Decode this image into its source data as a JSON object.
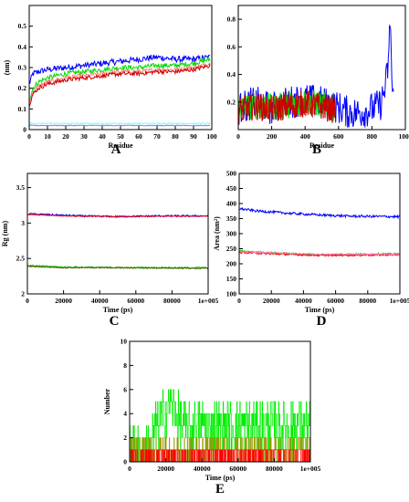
{
  "panels": {
    "A": {
      "letter": "A"
    },
    "B": {
      "letter": "B"
    },
    "C": {
      "letter": "C"
    },
    "D": {
      "letter": "D"
    },
    "E": {
      "letter": "E"
    }
  },
  "chart_data": [
    {
      "id": "A",
      "type": "line",
      "title": "",
      "xlabel": "Residue",
      "ylabel": "(nm)",
      "xlim": [
        0,
        100
      ],
      "ylim": [
        0,
        0.6
      ],
      "xticks": [
        0,
        10,
        20,
        30,
        40,
        50,
        60,
        70,
        80,
        90,
        100
      ],
      "yticks": [
        0,
        0.1,
        0.2,
        0.3,
        0.4,
        0.5
      ],
      "grid": false,
      "series": [
        {
          "color": "#0000ff",
          "x": [
            0,
            2,
            5,
            10,
            20,
            30,
            40,
            50,
            60,
            70,
            80,
            90,
            99
          ],
          "y": [
            0.22,
            0.27,
            0.28,
            0.29,
            0.3,
            0.31,
            0.32,
            0.33,
            0.34,
            0.35,
            0.34,
            0.34,
            0.35
          ],
          "noise": 0.015
        },
        {
          "color": "#00dd00",
          "x": [
            0,
            2,
            5,
            10,
            20,
            30,
            40,
            50,
            60,
            70,
            80,
            90,
            99
          ],
          "y": [
            0.14,
            0.2,
            0.23,
            0.25,
            0.27,
            0.28,
            0.29,
            0.3,
            0.3,
            0.31,
            0.31,
            0.32,
            0.34
          ],
          "noise": 0.012
        },
        {
          "color": "#ff8080",
          "x": [
            0,
            2,
            5,
            10,
            20,
            30,
            40,
            50,
            60,
            70,
            80,
            90,
            99
          ],
          "y": [
            0.13,
            0.18,
            0.21,
            0.23,
            0.25,
            0.26,
            0.27,
            0.28,
            0.28,
            0.29,
            0.29,
            0.3,
            0.32
          ],
          "noise": 0.01
        },
        {
          "color": "#cc0000",
          "x": [
            0,
            2,
            5,
            10,
            20,
            30,
            40,
            50,
            60,
            70,
            80,
            90,
            99
          ],
          "y": [
            0.12,
            0.17,
            0.2,
            0.22,
            0.24,
            0.25,
            0.26,
            0.27,
            0.27,
            0.28,
            0.28,
            0.29,
            0.31
          ],
          "noise": 0.01
        },
        {
          "color": "#80ffff",
          "x": [
            0,
            50,
            99
          ],
          "y": [
            0.03,
            0.03,
            0.03
          ],
          "noise": 0.003
        },
        {
          "color": "#8080ff",
          "x": [
            0,
            50,
            99
          ],
          "y": [
            0.02,
            0.02,
            0.02
          ],
          "noise": 0.002
        }
      ]
    },
    {
      "id": "B",
      "type": "line",
      "title": "",
      "xlabel": "Residue",
      "ylabel": "",
      "xlim": [
        0,
        1000
      ],
      "ylim": [
        0,
        0.9
      ],
      "xticks": [
        0,
        200,
        400,
        600,
        800,
        1000
      ],
      "yticks": [
        0.2,
        0.4,
        0.6,
        0.8
      ],
      "grid": false,
      "series": [
        {
          "color": "#0000ff",
          "x": [
            0,
            100,
            200,
            300,
            400,
            500,
            600,
            650,
            700,
            750,
            800,
            850,
            880,
            900,
            910,
            920,
            930
          ],
          "y": [
            0.15,
            0.2,
            0.15,
            0.2,
            0.22,
            0.2,
            0.16,
            0.13,
            0.12,
            0.13,
            0.15,
            0.18,
            0.3,
            0.5,
            0.85,
            0.3,
            0.2
          ],
          "noise": 0.12
        },
        {
          "color": "#00dd00",
          "x": [
            0,
            100,
            200,
            300,
            400,
            500,
            580
          ],
          "y": [
            0.15,
            0.18,
            0.16,
            0.18,
            0.2,
            0.18,
            0.15
          ],
          "noise": 0.1
        },
        {
          "color": "#cc0000",
          "x": [
            0,
            100,
            200,
            300,
            400,
            500,
            580
          ],
          "y": [
            0.14,
            0.17,
            0.15,
            0.17,
            0.19,
            0.17,
            0.14
          ],
          "noise": 0.1
        }
      ]
    },
    {
      "id": "C",
      "type": "line",
      "title": "",
      "xlabel": "Time (ps)",
      "ylabel": "Rg (nm)",
      "xlim": [
        0,
        100000
      ],
      "ylim": [
        2,
        3.7
      ],
      "xticks": [
        0,
        20000,
        40000,
        60000,
        80000,
        100000
      ],
      "xticklabels": [
        "0",
        "20000",
        "40000",
        "60000",
        "80000",
        "1e+005"
      ],
      "yticks": [
        2,
        2.5,
        3,
        3.5
      ],
      "grid": false,
      "series": [
        {
          "color": "#0000ff",
          "x": [
            0,
            10000,
            30000,
            50000,
            70000,
            90000,
            100000
          ],
          "y": [
            3.13,
            3.12,
            3.1,
            3.09,
            3.1,
            3.1,
            3.1
          ],
          "noise": 0.012
        },
        {
          "color": "#ff0000",
          "x": [
            0,
            20000,
            50000,
            100000
          ],
          "y": [
            3.12,
            3.1,
            3.09,
            3.1
          ],
          "noise": 0.006
        },
        {
          "color": "#00cc00",
          "x": [
            0,
            20000,
            50000,
            100000
          ],
          "y": [
            2.4,
            2.38,
            2.37,
            2.37
          ],
          "noise": 0.01
        },
        {
          "color": "#555500",
          "x": [
            0,
            20000,
            50000,
            100000
          ],
          "y": [
            2.39,
            2.37,
            2.37,
            2.36
          ],
          "noise": 0.008
        }
      ]
    },
    {
      "id": "D",
      "type": "line",
      "title": "",
      "xlabel": "Time (ps)",
      "ylabel": "Area (nm²)",
      "xlim": [
        0,
        100000
      ],
      "ylim": [
        100,
        500
      ],
      "xticks": [
        0,
        20000,
        40000,
        60000,
        80000,
        100000
      ],
      "xticklabels": [
        "0",
        "20000",
        "40000",
        "60000",
        "80000",
        "1e+005"
      ],
      "yticks": [
        100,
        150,
        200,
        250,
        300,
        350,
        400,
        450,
        500
      ],
      "grid": false,
      "series": [
        {
          "color": "#0000ff",
          "x": [
            0,
            10000,
            30000,
            50000,
            70000,
            90000,
            100000
          ],
          "y": [
            383,
            376,
            368,
            362,
            358,
            357,
            356
          ],
          "noise": 4
        },
        {
          "color": "#00cc00",
          "x": [
            0,
            20000,
            50000,
            80000,
            100000
          ],
          "y": [
            242,
            236,
            230,
            232,
            233
          ],
          "noise": 3
        },
        {
          "color": "#ff0000",
          "x": [
            0,
            20000,
            50000,
            80000,
            100000
          ],
          "y": [
            238,
            233,
            228,
            229,
            230
          ],
          "noise": 3
        },
        {
          "color": "#ff80c0",
          "x": [
            0,
            50000,
            100000
          ],
          "y": [
            240,
            232,
            232
          ],
          "noise": 2
        }
      ]
    },
    {
      "id": "E",
      "type": "line",
      "title": "",
      "xlabel": "Time (ps)",
      "ylabel": "Number",
      "xlim": [
        0,
        100000
      ],
      "ylim": [
        0,
        10
      ],
      "xticks": [
        0,
        20000,
        40000,
        60000,
        80000,
        100000
      ],
      "xticklabels": [
        "0",
        "20000",
        "40000",
        "60000",
        "80000",
        "1e+005"
      ],
      "yticks": [
        0,
        2,
        4,
        6,
        8,
        10
      ],
      "grid": false,
      "series": [
        {
          "color": "#00ee00",
          "x": [
            0,
            10000,
            15000,
            20000,
            22000,
            30000,
            50000,
            70000,
            90000,
            100000
          ],
          "y": [
            1,
            1,
            3,
            4,
            5,
            3,
            3,
            3,
            3,
            3
          ],
          "noise": 2.0
        },
        {
          "color": "#999900",
          "x": [
            0,
            50000,
            100000
          ],
          "y": [
            1,
            1,
            1
          ],
          "noise": 1.0
        },
        {
          "color": "#ff0000",
          "x": [
            0,
            50000,
            100000
          ],
          "y": [
            0.6,
            0.6,
            0.6
          ],
          "noise": 0.8
        }
      ]
    }
  ]
}
